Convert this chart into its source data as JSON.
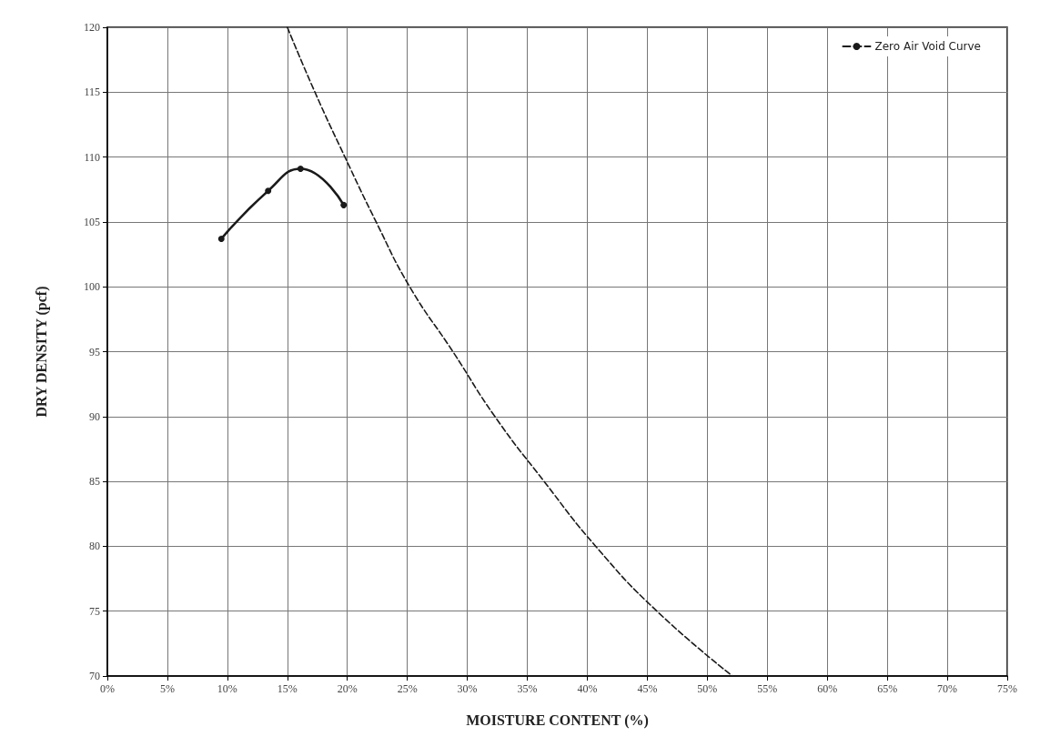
{
  "chart_data": {
    "type": "line",
    "xlabel": "MOISTURE CONTENT (%)",
    "ylabel": "DRY DENSITY (pcf)",
    "xlim": [
      0,
      75
    ],
    "ylim": [
      70,
      120
    ],
    "xticks": [
      {
        "value": 0,
        "label": "0%"
      },
      {
        "value": 5,
        "label": "5%"
      },
      {
        "value": 10,
        "label": "10%"
      },
      {
        "value": 15,
        "label": "15%"
      },
      {
        "value": 20,
        "label": "20%"
      },
      {
        "value": 25,
        "label": "25%"
      },
      {
        "value": 30,
        "label": "30%"
      },
      {
        "value": 35,
        "label": "35%"
      },
      {
        "value": 40,
        "label": "40%"
      },
      {
        "value": 45,
        "label": "45%"
      },
      {
        "value": 50,
        "label": "50%"
      },
      {
        "value": 55,
        "label": "55%"
      },
      {
        "value": 60,
        "label": "60%"
      },
      {
        "value": 65,
        "label": "65%"
      },
      {
        "value": 70,
        "label": "70%"
      },
      {
        "value": 75,
        "label": "75%"
      }
    ],
    "yticks": [
      70,
      75,
      80,
      85,
      90,
      95,
      100,
      105,
      110,
      115,
      120
    ],
    "grid": true,
    "legend": "top right",
    "series": [
      {
        "color": "#1a1a1a",
        "x": [
          9.5,
          13.4,
          16.1,
          19.7
        ],
        "values": [
          103.7,
          107.4,
          109.1,
          106.3
        ],
        "marker": "circle",
        "line_style": "solid"
      },
      {
        "name": "Zero Air Void Curve",
        "color": "#1a1a1a",
        "x": [
          15.0,
          17.3,
          19.8,
          22.4,
          25.2,
          28.8,
          32.3,
          36.4,
          40.7,
          45.8,
          52.1
        ],
        "values": [
          120,
          115,
          110,
          105,
          100,
          95,
          90,
          85,
          80,
          75,
          70
        ],
        "marker": "none",
        "line_style": "dashed"
      }
    ]
  }
}
